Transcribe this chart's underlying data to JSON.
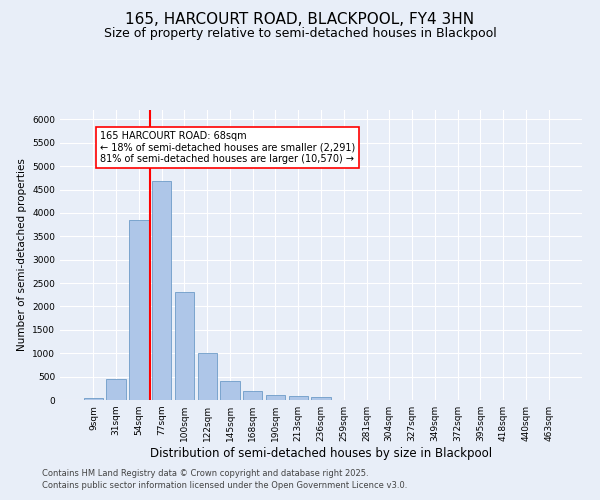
{
  "title": "165, HARCOURT ROAD, BLACKPOOL, FY4 3HN",
  "subtitle": "Size of property relative to semi-detached houses in Blackpool",
  "xlabel": "Distribution of semi-detached houses by size in Blackpool",
  "ylabel": "Number of semi-detached properties",
  "footnote1": "Contains HM Land Registry data © Crown copyright and database right 2025.",
  "footnote2": "Contains public sector information licensed under the Open Government Licence v3.0.",
  "categories": [
    "9sqm",
    "31sqm",
    "54sqm",
    "77sqm",
    "100sqm",
    "122sqm",
    "145sqm",
    "168sqm",
    "190sqm",
    "213sqm",
    "236sqm",
    "259sqm",
    "281sqm",
    "304sqm",
    "327sqm",
    "349sqm",
    "372sqm",
    "395sqm",
    "418sqm",
    "440sqm",
    "463sqm"
  ],
  "bar_values": [
    50,
    450,
    3850,
    4680,
    2300,
    1000,
    410,
    200,
    100,
    80,
    55,
    0,
    0,
    0,
    0,
    0,
    0,
    0,
    0,
    0,
    0
  ],
  "bar_color": "#aec6e8",
  "bar_edge_color": "#5a8fc0",
  "vline_color": "red",
  "vline_x_index": 2.5,
  "annotation_box_text": "165 HARCOURT ROAD: 68sqm\n← 18% of semi-detached houses are smaller (2,291)\n81% of semi-detached houses are larger (10,570) →",
  "ylim": [
    0,
    6200
  ],
  "yticks": [
    0,
    500,
    1000,
    1500,
    2000,
    2500,
    3000,
    3500,
    4000,
    4500,
    5000,
    5500,
    6000
  ],
  "bg_color": "#e8eef8",
  "plot_bg_color": "#e8eef8",
  "grid_color": "white",
  "title_fontsize": 11,
  "subtitle_fontsize": 9,
  "xlabel_fontsize": 8.5,
  "ylabel_fontsize": 7.5,
  "tick_fontsize": 6.5,
  "annotation_fontsize": 7,
  "footnote_fontsize": 6
}
